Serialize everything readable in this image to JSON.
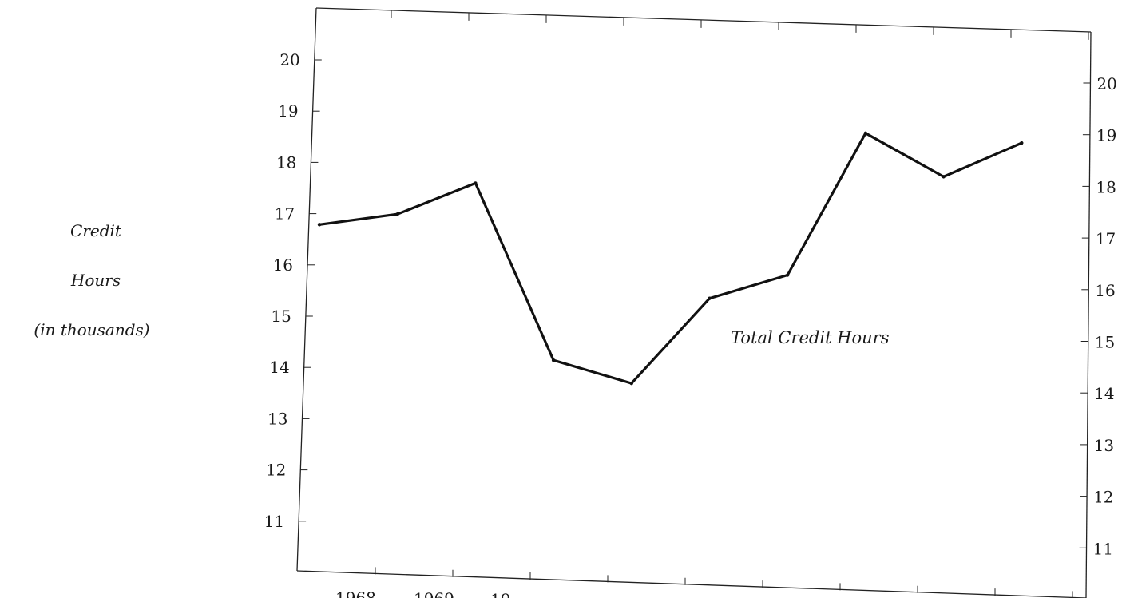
{
  "chart_data": {
    "type": "line",
    "title": "",
    "ylabel_lines": [
      "Credit",
      "Hours",
      "(in thousands)"
    ],
    "annotation": "Total Credit Hours",
    "x_tick_labels": [
      "1968",
      "1969",
      "19"
    ],
    "x_tick_count": 10,
    "ylim": [
      10,
      21
    ],
    "yticks_left": [
      "20",
      "19",
      "18",
      "17",
      "16",
      "15",
      "14",
      "13",
      "12",
      "11"
    ],
    "yticks_right": [
      "20",
      "19",
      "18",
      "17",
      "16",
      "15",
      "14",
      "13",
      "12",
      "11"
    ],
    "grid": false,
    "series": [
      {
        "values": [
          16.8,
          17.05,
          17.7,
          14.3,
          13.9,
          15.6,
          16.1,
          18.9,
          18.1,
          18.8
        ]
      }
    ],
    "line_color": "#111111"
  }
}
